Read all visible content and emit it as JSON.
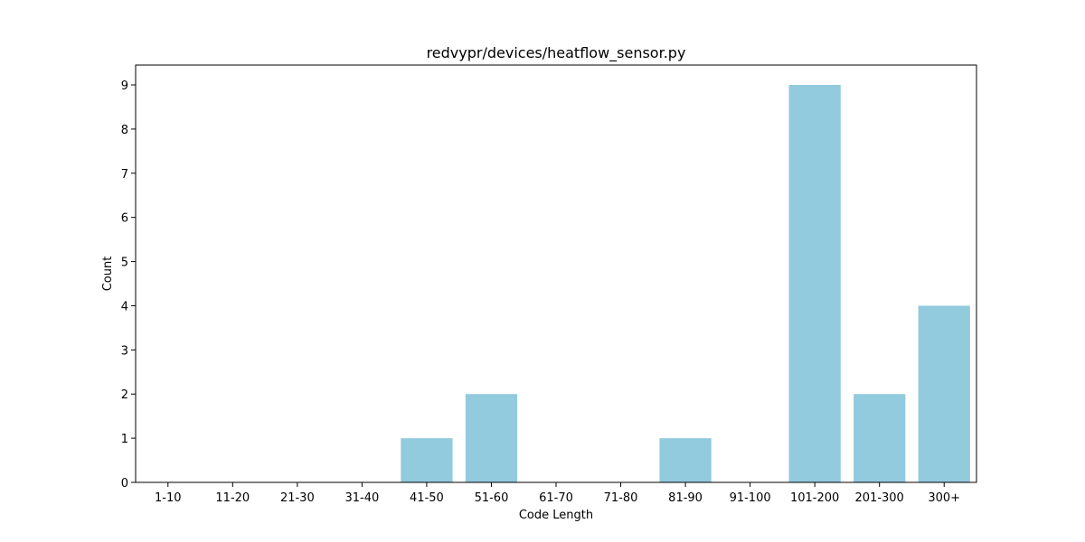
{
  "chart_data": {
    "type": "bar",
    "title": "redvypr/devices/heatflow_sensor.py",
    "xlabel": "Code Length",
    "ylabel": "Count",
    "categories": [
      "1-10",
      "11-20",
      "21-30",
      "31-40",
      "41-50",
      "51-60",
      "61-70",
      "71-80",
      "81-90",
      "91-100",
      "101-200",
      "201-300",
      "300+"
    ],
    "values": [
      0,
      0,
      0,
      0,
      1,
      2,
      0,
      0,
      1,
      0,
      9,
      2,
      4
    ],
    "ylim": [
      0,
      9.45
    ],
    "yticks": [
      0,
      1,
      2,
      3,
      4,
      5,
      6,
      7,
      8,
      9
    ],
    "bar_color": "#92cade",
    "grid": false,
    "legend": "none"
  }
}
